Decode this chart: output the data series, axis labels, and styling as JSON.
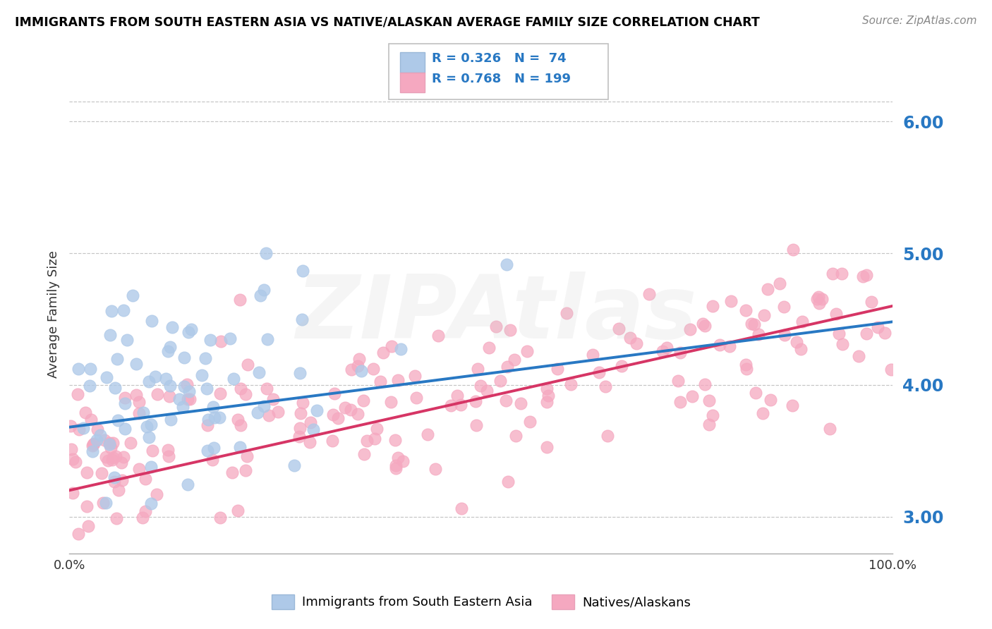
{
  "title": "IMMIGRANTS FROM SOUTH EASTERN ASIA VS NATIVE/ALASKAN AVERAGE FAMILY SIZE CORRELATION CHART",
  "source": "Source: ZipAtlas.com",
  "ylabel": "Average Family Size",
  "xlim": [
    0.0,
    1.0
  ],
  "ylim": [
    2.72,
    6.35
  ],
  "yticks": [
    3.0,
    4.0,
    5.0,
    6.0
  ],
  "xtick_labels": [
    "0.0%",
    "100.0%"
  ],
  "blue_R": 0.326,
  "blue_N": 74,
  "pink_R": 0.768,
  "pink_N": 199,
  "blue_dot_color": "#aec9e8",
  "pink_dot_color": "#f5a8c0",
  "blue_line_color": "#2878c3",
  "pink_line_color": "#d63565",
  "ytick_color": "#2878c3",
  "legend_label_1": "Immigrants from South Eastern Asia",
  "legend_label_2": "Natives/Alaskans",
  "blue_rand_seed": 42,
  "pink_rand_seed": 17
}
